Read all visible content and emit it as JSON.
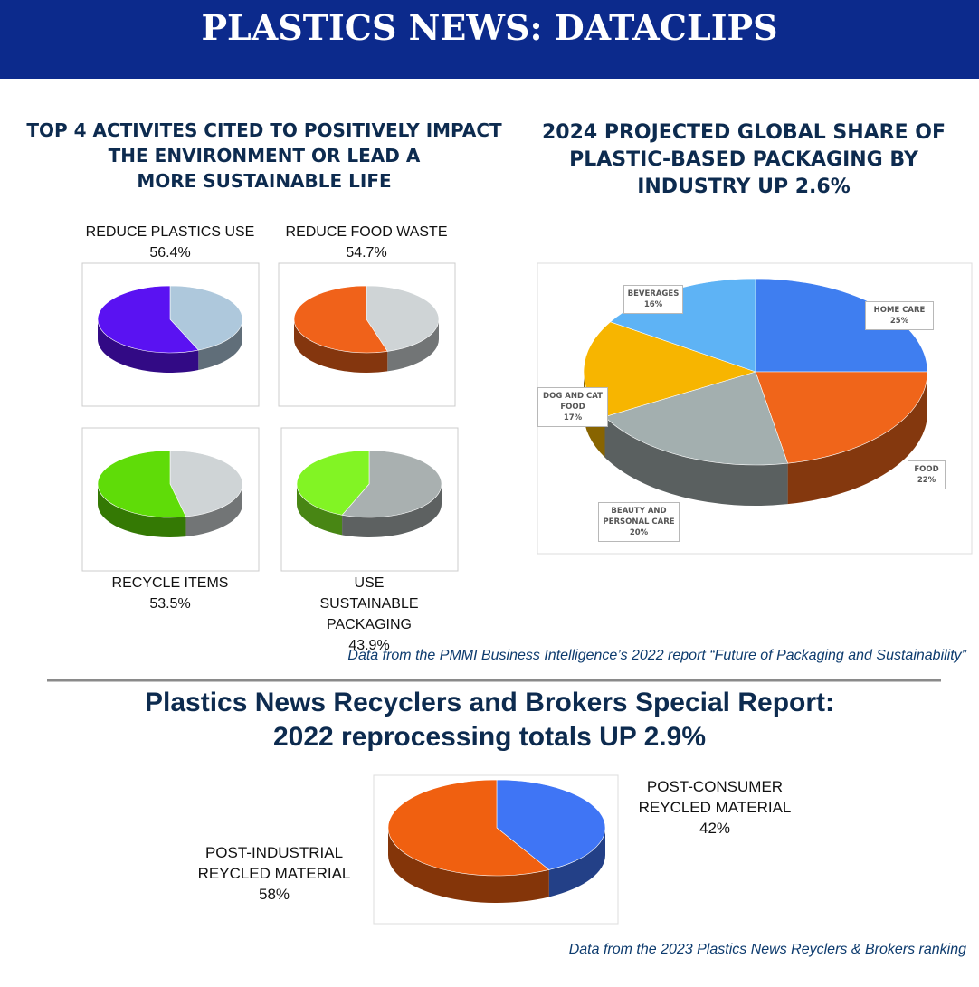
{
  "header": {
    "title": "PLASTICS NEWS: DATACLIPS"
  },
  "chart_data": [
    {
      "type": "multipie",
      "title": [
        "TOP 4 ACTIVITES CITED TO POSITIVELY IMPACT",
        "THE ENVIRONMENT OR LEAD A",
        "MORE SUSTAINABLE LIFE"
      ],
      "categories": [
        "REDUCE PLASTICS USE",
        "REDUCE FOOD WASTE",
        "RECYCLE ITEMS",
        "USE SUSTAINABLE PACKAGING"
      ],
      "values": [
        56.4,
        54.7,
        53.5,
        43.9
      ],
      "value_labels": [
        "56.4%",
        "54.7%",
        "53.5%",
        "43.9%"
      ],
      "colors": [
        "#5a12f2",
        "#f0621a",
        "#5fdc08",
        "#82f424"
      ],
      "rest_colors": [
        "#aec8dc",
        "#cfd4d6",
        "#cfd4d6",
        "#a9b0b0"
      ],
      "source": "Data from the PMMI Business Intelligence’s 2022 report “Future of Packaging and Sustainability”"
    },
    {
      "type": "pie",
      "title": [
        "2024 PROJECTED GLOBAL SHARE OF",
        "PLASTIC-BASED PACKAGING BY",
        "INDUSTRY UP 2.6%"
      ],
      "categories": [
        "HOME CARE",
        "FOOD",
        "BEAUTY AND PERSONAL CARE",
        "DOG AND CAT FOOD",
        "BEVERAGES"
      ],
      "values": [
        25,
        22,
        20,
        17,
        16
      ],
      "value_labels": [
        "25%",
        "22%",
        "20%",
        "17%",
        "16%"
      ],
      "colors": [
        "#3f7ef0",
        "#f0651a",
        "#a3afaf",
        "#f7b500",
        "#5eb3f5"
      ]
    },
    {
      "type": "pie",
      "title": [
        "Plastics News Recyclers and Brokers Special Report:",
        "2022 reprocessing totals UP 2.9%"
      ],
      "categories": [
        "POST-CONSUMER REYCLED MATERIAL",
        "POST-INDUSTRIAL REYCLED MATERIAL"
      ],
      "values": [
        42,
        58
      ],
      "value_labels": [
        "42%",
        "58%"
      ],
      "colors": [
        "#3f75f5",
        "#f06010"
      ],
      "source": "Data from the 2023 Plastics News Reyclers & Brokers ranking"
    }
  ]
}
